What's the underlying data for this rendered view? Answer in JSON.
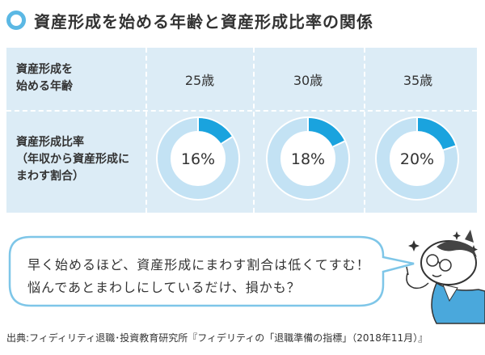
{
  "title": "資産形成を始める年齢と資産形成比率の関係",
  "table": {
    "row1_label": [
      "資産形成を",
      "始める年齢"
    ],
    "row2_label": [
      "資産形成比率",
      "（年収から資産形成に",
      "まわす割合）"
    ],
    "columns": [
      "25歳",
      "30歳",
      "35歳"
    ],
    "percent_labels": [
      "16%",
      "18%",
      "20%"
    ]
  },
  "bubble": {
    "line1": "早く始めるほど、資産形成にまわす割合は低くてすむ！",
    "line2": "悩んであとまわしにしているだけ、損かも？"
  },
  "source": "出典:フィディリティ退職･投資教育研究所『フィデリティの「退職準備の指標」（2018年11月）』",
  "colors": {
    "accent": "#1aa3de",
    "ring": "#c3e2f4",
    "panel": "#dcecf6"
  },
  "chart_data": {
    "type": "pie",
    "categories": [
      "25歳",
      "30歳",
      "35歳"
    ],
    "values": [
      16,
      18,
      20
    ],
    "unit": "%"
  }
}
